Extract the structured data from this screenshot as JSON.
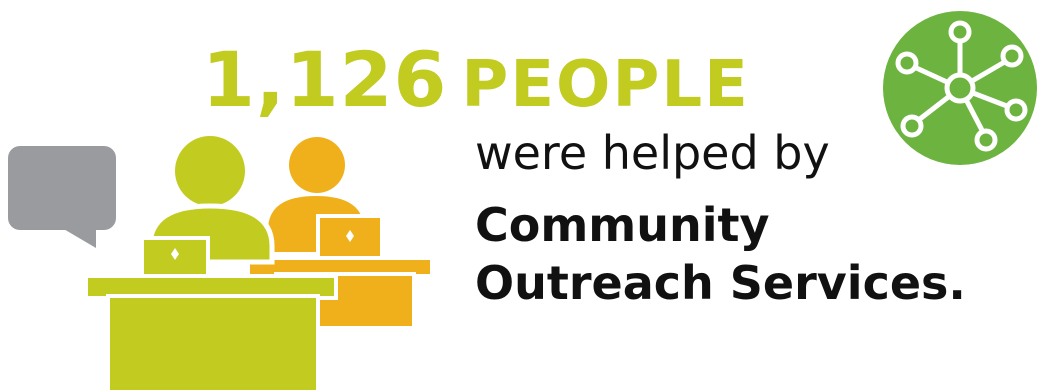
{
  "headline": {
    "count": "1,126",
    "unit": "PEOPLE"
  },
  "subline": "were helped by",
  "organization": {
    "line1": "Community",
    "line2": "Outreach Services."
  },
  "colors": {
    "lime": "#c2cb20",
    "orange": "#f0b01b",
    "gray": "#9a9b9e",
    "green_badge": "#6db33f",
    "text": "#111111"
  },
  "icons": {
    "speech_bubble": "speech-bubble-icon",
    "people_at_desks": "people-at-desks-illustration",
    "network_badge": "network-hub-icon"
  }
}
